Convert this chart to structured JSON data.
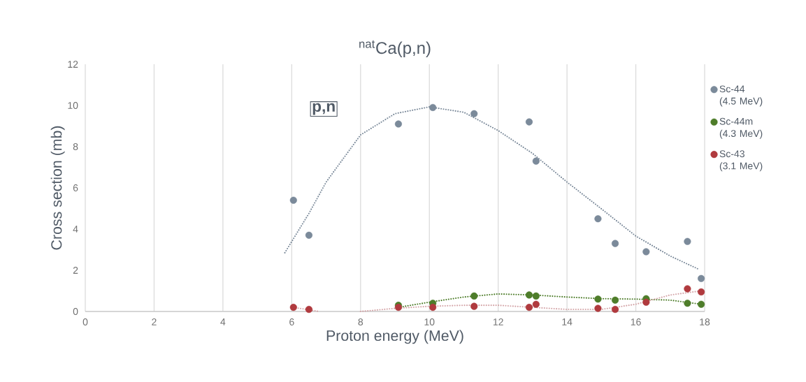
{
  "chart_data": {
    "type": "scatter",
    "title": "$^{nat}$Ca(p,n)",
    "xlabel": "Proton energy (MeV)",
    "ylabel": "Cross section (mb)",
    "annotations": [
      "p,n"
    ],
    "xlim": [
      0,
      18
    ],
    "ylim": [
      0,
      12
    ],
    "xticks": [
      0,
      2,
      4,
      6,
      8,
      10,
      12,
      14,
      16,
      18
    ],
    "yticks": [
      0,
      2,
      4,
      6,
      8,
      10,
      12
    ],
    "grid": "x",
    "legend": "right",
    "marker": "circle",
    "series": [
      {
        "name": "Sc-44 (4.5 MeV)",
        "color": "#7b8a9a",
        "x": [
          6.05,
          6.5,
          9.1,
          10.1,
          11.3,
          12.9,
          13.1,
          14.9,
          15.4,
          16.3,
          17.5,
          17.9
        ],
        "values": [
          5.4,
          3.7,
          9.1,
          9.9,
          9.6,
          9.2,
          7.3,
          4.5,
          3.3,
          2.9,
          3.4,
          1.6
        ]
      },
      {
        "name": "Sc-44m (4.3 MeV)",
        "color": "#4e7d2a",
        "x": [
          9.1,
          10.1,
          11.3,
          12.9,
          13.1,
          14.9,
          15.4,
          16.3,
          17.5,
          17.9
        ],
        "values": [
          0.3,
          0.4,
          0.75,
          0.8,
          0.75,
          0.6,
          0.55,
          0.62,
          0.4,
          0.35
        ]
      },
      {
        "name": "Sc-43 (3.1 MeV)",
        "color": "#b03a3e",
        "x": [
          6.05,
          6.5,
          9.1,
          10.1,
          11.3,
          12.9,
          13.1,
          14.9,
          15.4,
          16.3,
          17.5,
          17.9
        ],
        "values": [
          0.2,
          0.1,
          0.2,
          0.2,
          0.25,
          0.2,
          0.35,
          0.15,
          0.1,
          0.45,
          1.1,
          0.95
        ]
      },
      {
        "type": "line",
        "line_style": "dotted",
        "marker": "none",
        "color": "#7b8a9a",
        "x": [
          5.8,
          6.5,
          7,
          8,
          9,
          10,
          11,
          12,
          13,
          14,
          15,
          16,
          17,
          17.8
        ],
        "values": [
          2.85,
          4.76,
          6.28,
          8.57,
          9.6,
          9.93,
          9.67,
          8.78,
          7.67,
          6.28,
          4.98,
          3.66,
          2.69,
          2.07
        ]
      },
      {
        "type": "line",
        "line_style": "dotted",
        "marker": "none",
        "color": "#4e7d2a",
        "x": [
          9.1,
          10,
          11,
          12,
          13,
          14,
          15,
          16,
          17,
          17.9
        ],
        "values": [
          0.2,
          0.45,
          0.7,
          0.85,
          0.8,
          0.7,
          0.62,
          0.6,
          0.55,
          0.35
        ]
      },
      {
        "type": "line",
        "line_style": "dotted",
        "marker": "none",
        "color": "#d4a5a8",
        "x": [
          6.05,
          6.5,
          6.8,
          7.4,
          8,
          9,
          10,
          11,
          12,
          13,
          14,
          15,
          16,
          17,
          17.9
        ],
        "values": [
          0.2,
          0.08,
          0.0,
          null,
          0.0,
          0.15,
          0.25,
          0.3,
          0.3,
          0.2,
          0.1,
          0.1,
          0.35,
          0.8,
          1.0
        ]
      }
    ]
  }
}
